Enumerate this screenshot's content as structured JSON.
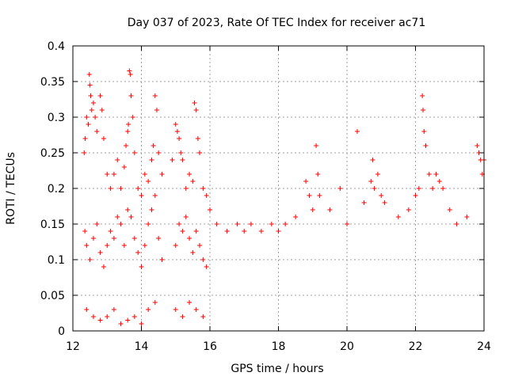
{
  "chart_data": {
    "type": "scatter",
    "title": "Day 037 of 2023, Rate Of TEC Index for receiver ac71",
    "xlabel": "GPS time / hours",
    "ylabel": "ROTI / TECUs",
    "xlim": [
      12,
      24
    ],
    "ylim": [
      0,
      0.4
    ],
    "grid": true,
    "marker": "+",
    "marker_color": "#ff0000",
    "x_ticks": [
      12,
      14,
      16,
      18,
      20,
      22,
      24
    ],
    "x_tick_labels": [
      "12",
      "14",
      "16",
      "18",
      "20",
      "22",
      "24"
    ],
    "y_ticks": [
      0,
      0.05,
      0.1,
      0.15,
      0.2,
      0.25,
      0.3,
      0.35,
      0.4
    ],
    "y_tick_labels": [
      "0",
      "0.05",
      "0.1",
      "0.15",
      "0.2",
      "0.25",
      "0.3",
      "0.35",
      "0.4"
    ],
    "series": [
      {
        "points": [
          [
            12.33,
            0.25
          ],
          [
            12.36,
            0.27
          ],
          [
            12.4,
            0.3
          ],
          [
            12.45,
            0.29
          ],
          [
            12.48,
            0.36
          ],
          [
            12.5,
            0.345
          ],
          [
            12.52,
            0.33
          ],
          [
            12.55,
            0.31
          ],
          [
            12.6,
            0.32
          ],
          [
            12.65,
            0.3
          ],
          [
            12.7,
            0.28
          ],
          [
            12.8,
            0.33
          ],
          [
            12.85,
            0.31
          ],
          [
            12.9,
            0.27
          ],
          [
            13.0,
            0.22
          ],
          [
            13.1,
            0.2
          ],
          [
            13.2,
            0.22
          ],
          [
            13.3,
            0.24
          ],
          [
            13.4,
            0.2
          ],
          [
            13.5,
            0.23
          ],
          [
            13.55,
            0.26
          ],
          [
            13.6,
            0.28
          ],
          [
            13.62,
            0.29
          ],
          [
            13.65,
            0.365
          ],
          [
            13.68,
            0.36
          ],
          [
            13.7,
            0.33
          ],
          [
            13.75,
            0.3
          ],
          [
            13.8,
            0.25
          ],
          [
            13.9,
            0.2
          ],
          [
            14.0,
            0.19
          ],
          [
            14.1,
            0.22
          ],
          [
            14.2,
            0.21
          ],
          [
            14.3,
            0.24
          ],
          [
            14.35,
            0.26
          ],
          [
            14.4,
            0.33
          ],
          [
            14.45,
            0.31
          ],
          [
            14.5,
            0.25
          ],
          [
            14.6,
            0.22
          ],
          [
            14.9,
            0.24
          ],
          [
            15.0,
            0.29
          ],
          [
            15.05,
            0.28
          ],
          [
            15.1,
            0.27
          ],
          [
            15.15,
            0.25
          ],
          [
            15.2,
            0.24
          ],
          [
            15.3,
            0.2
          ],
          [
            15.4,
            0.22
          ],
          [
            15.5,
            0.21
          ],
          [
            15.55,
            0.32
          ],
          [
            15.6,
            0.31
          ],
          [
            15.65,
            0.27
          ],
          [
            15.7,
            0.25
          ],
          [
            15.8,
            0.2
          ],
          [
            15.9,
            0.19
          ],
          [
            16.0,
            0.17
          ],
          [
            16.2,
            0.15
          ],
          [
            16.5,
            0.14
          ],
          [
            16.8,
            0.15
          ],
          [
            17.0,
            0.14
          ],
          [
            17.2,
            0.15
          ],
          [
            17.5,
            0.14
          ],
          [
            17.8,
            0.15
          ],
          [
            18.0,
            0.14
          ],
          [
            18.2,
            0.15
          ],
          [
            18.5,
            0.16
          ],
          [
            18.8,
            0.21
          ],
          [
            18.9,
            0.19
          ],
          [
            19.0,
            0.17
          ],
          [
            19.1,
            0.26
          ],
          [
            19.15,
            0.22
          ],
          [
            19.2,
            0.19
          ],
          [
            19.5,
            0.17
          ],
          [
            19.8,
            0.2
          ],
          [
            20.0,
            0.15
          ],
          [
            20.3,
            0.28
          ],
          [
            20.5,
            0.18
          ],
          [
            20.7,
            0.21
          ],
          [
            20.75,
            0.24
          ],
          [
            20.8,
            0.2
          ],
          [
            20.9,
            0.22
          ],
          [
            21.0,
            0.19
          ],
          [
            21.1,
            0.18
          ],
          [
            21.5,
            0.16
          ],
          [
            21.8,
            0.17
          ],
          [
            22.0,
            0.19
          ],
          [
            22.1,
            0.2
          ],
          [
            22.2,
            0.33
          ],
          [
            22.22,
            0.31
          ],
          [
            22.25,
            0.28
          ],
          [
            22.3,
            0.26
          ],
          [
            22.4,
            0.22
          ],
          [
            22.5,
            0.2
          ],
          [
            22.6,
            0.22
          ],
          [
            22.7,
            0.21
          ],
          [
            22.8,
            0.2
          ],
          [
            23.0,
            0.17
          ],
          [
            23.2,
            0.15
          ],
          [
            23.5,
            0.16
          ],
          [
            23.8,
            0.26
          ],
          [
            23.85,
            0.25
          ],
          [
            23.9,
            0.24
          ],
          [
            23.95,
            0.22
          ],
          [
            24.0,
            0.24
          ],
          [
            12.35,
            0.14
          ],
          [
            12.4,
            0.12
          ],
          [
            12.5,
            0.1
          ],
          [
            12.6,
            0.13
          ],
          [
            12.7,
            0.15
          ],
          [
            12.8,
            0.11
          ],
          [
            12.9,
            0.09
          ],
          [
            13.0,
            0.12
          ],
          [
            13.1,
            0.14
          ],
          [
            13.2,
            0.13
          ],
          [
            13.3,
            0.16
          ],
          [
            13.4,
            0.15
          ],
          [
            13.5,
            0.12
          ],
          [
            13.6,
            0.17
          ],
          [
            13.7,
            0.16
          ],
          [
            13.8,
            0.13
          ],
          [
            13.9,
            0.11
          ],
          [
            14.0,
            0.09
          ],
          [
            14.1,
            0.12
          ],
          [
            14.2,
            0.15
          ],
          [
            14.3,
            0.17
          ],
          [
            14.4,
            0.19
          ],
          [
            14.5,
            0.13
          ],
          [
            14.6,
            0.1
          ],
          [
            15.0,
            0.12
          ],
          [
            15.1,
            0.15
          ],
          [
            15.2,
            0.14
          ],
          [
            15.3,
            0.16
          ],
          [
            15.4,
            0.13
          ],
          [
            15.5,
            0.11
          ],
          [
            15.6,
            0.14
          ],
          [
            15.7,
            0.12
          ],
          [
            15.8,
            0.1
          ],
          [
            15.9,
            0.09
          ],
          [
            12.4,
            0.03
          ],
          [
            12.6,
            0.02
          ],
          [
            12.8,
            0.015
          ],
          [
            13.0,
            0.02
          ],
          [
            13.2,
            0.03
          ],
          [
            13.4,
            0.01
          ],
          [
            13.6,
            0.015
          ],
          [
            13.8,
            0.02
          ],
          [
            14.0,
            0.01
          ],
          [
            14.2,
            0.03
          ],
          [
            14.4,
            0.04
          ],
          [
            15.0,
            0.03
          ],
          [
            15.2,
            0.02
          ],
          [
            15.4,
            0.04
          ],
          [
            15.6,
            0.03
          ],
          [
            15.8,
            0.02
          ]
        ]
      }
    ]
  }
}
